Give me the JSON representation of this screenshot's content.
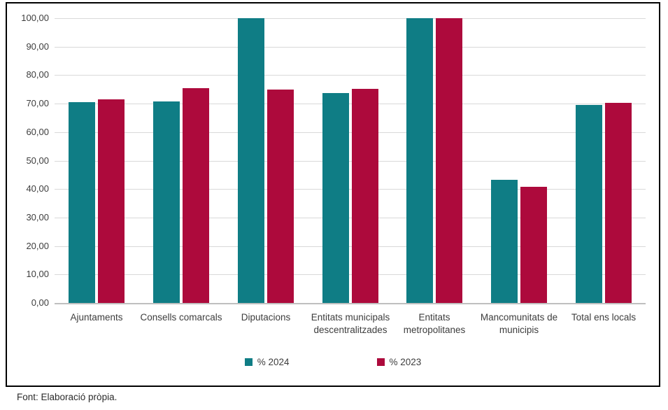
{
  "chart_data": {
    "type": "bar",
    "title": "",
    "categories": [
      "Ajuntaments",
      "Consells comarcals",
      "Diputacions",
      "Entitats municipals descentralitzades",
      "Entitats metropolitanes",
      "Mancomunitats de municipis",
      "Total ens locals"
    ],
    "series": [
      {
        "name": "% 2024",
        "color": "#0f7d85",
        "values": [
          70.5,
          70.8,
          100.0,
          73.6,
          100.0,
          43.3,
          69.5
        ]
      },
      {
        "name": "% 2023",
        "color": "#ad0a3c",
        "values": [
          71.4,
          75.5,
          74.9,
          75.3,
          100.0,
          40.7,
          70.3
        ]
      }
    ],
    "ylim": [
      0,
      100
    ],
    "ytick_step": 10,
    "ytick_labels": [
      "0,00",
      "10,00",
      "20,00",
      "30,00",
      "40,00",
      "50,00",
      "60,00",
      "70,00",
      "80,00",
      "90,00",
      "100,00"
    ],
    "grid": true,
    "legend_position": "bottom",
    "colors": {
      "gridline": "#d9d9d9",
      "axis_line": "#bfbfbf",
      "text": "#3d3d3d",
      "border": "#000000"
    },
    "xlabel": "",
    "ylabel": ""
  },
  "footer": {
    "source_note": "Font: Elaboració pròpia."
  }
}
